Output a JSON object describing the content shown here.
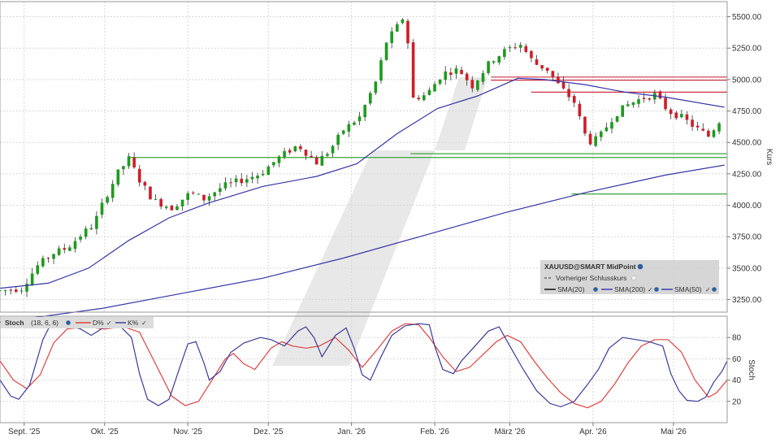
{
  "chart_data": [
    {
      "type": "candlestick",
      "instrument": "XAUUSD@SMART MidPoint",
      "ylabel": "Kurs",
      "ylim": [
        3150,
        5620
      ],
      "yticks": [
        "3250.00",
        "3500.00",
        "3750.00",
        "4000.00",
        "4250.00",
        "4500.00",
        "4750.00",
        "5000.00",
        "5250.00",
        "5500.00"
      ],
      "ytick_values": [
        3250,
        3500,
        3750,
        4000,
        4250,
        4500,
        4750,
        5000,
        5250,
        5500
      ],
      "xticks": [
        "Sept. '25",
        "Okt. '25",
        "Nov. '25",
        "Dez. '25",
        "Jan. '26",
        "Feb. '26",
        "März '26",
        "Apr. '26",
        "Mai '26"
      ],
      "xtick_days": [
        1,
        31,
        62,
        92,
        123,
        154,
        182,
        213,
        243
      ],
      "day_range": [
        -8,
        263
      ],
      "candle_step_days": 2,
      "anchors": [
        [
          -8,
          3320
        ],
        [
          0,
          3340
        ],
        [
          6,
          3520
        ],
        [
          12,
          3620
        ],
        [
          17,
          3660
        ],
        [
          22,
          3760
        ],
        [
          27,
          3850
        ],
        [
          31,
          4050
        ],
        [
          36,
          4260
        ],
        [
          40,
          4370
        ],
        [
          44,
          4200
        ],
        [
          49,
          4040
        ],
        [
          56,
          3980
        ],
        [
          63,
          4100
        ],
        [
          68,
          4050
        ],
        [
          75,
          4150
        ],
        [
          82,
          4200
        ],
        [
          89,
          4250
        ],
        [
          96,
          4380
        ],
        [
          103,
          4480
        ],
        [
          110,
          4340
        ],
        [
          115,
          4440
        ],
        [
          120,
          4600
        ],
        [
          126,
          4700
        ],
        [
          132,
          4980
        ],
        [
          136,
          5300
        ],
        [
          140,
          5420
        ],
        [
          143,
          5520
        ],
        [
          146,
          4850
        ],
        [
          151,
          4880
        ],
        [
          157,
          5050
        ],
        [
          163,
          5080
        ],
        [
          168,
          4950
        ],
        [
          175,
          5150
        ],
        [
          181,
          5240
        ],
        [
          186,
          5280
        ],
        [
          191,
          5130
        ],
        [
          196,
          5080
        ],
        [
          200,
          4960
        ],
        [
          206,
          4820
        ],
        [
          211,
          4500
        ],
        [
          215,
          4530
        ],
        [
          221,
          4720
        ],
        [
          226,
          4800
        ],
        [
          231,
          4850
        ],
        [
          236,
          4880
        ],
        [
          241,
          4750
        ],
        [
          246,
          4700
        ],
        [
          251,
          4620
        ],
        [
          256,
          4550
        ],
        [
          261,
          4700
        ]
      ],
      "series": [
        {
          "name": "Vorheriger Schlusskurs",
          "values": [],
          "style": "dashed"
        },
        {
          "name": "SMA(20)",
          "values": [],
          "color": "#000000"
        },
        {
          "name": "SMA(200)",
          "values": [
            [
              -8,
              3070
            ],
            [
              30,
              3180
            ],
            [
              60,
              3300
            ],
            [
              90,
              3420
            ],
            [
              120,
              3580
            ],
            [
              150,
              3760
            ],
            [
              180,
              3940
            ],
            [
              210,
              4100
            ],
            [
              240,
              4240
            ],
            [
              262,
              4320
            ]
          ],
          "color": "#3535a8"
        },
        {
          "name": "SMA(50)",
          "values": [
            [
              -8,
              3340
            ],
            [
              10,
              3380
            ],
            [
              25,
              3500
            ],
            [
              40,
              3720
            ],
            [
              55,
              3900
            ],
            [
              70,
              4020
            ],
            [
              90,
              4150
            ],
            [
              110,
              4230
            ],
            [
              125,
              4330
            ],
            [
              140,
              4570
            ],
            [
              155,
              4770
            ],
            [
              170,
              4870
            ],
            [
              185,
              5010
            ],
            [
              195,
              5000
            ],
            [
              210,
              4960
            ],
            [
              225,
              4900
            ],
            [
              240,
              4860
            ],
            [
              262,
              4780
            ]
          ],
          "color": "#3535a8"
        }
      ],
      "hlines": [
        {
          "y": 5020,
          "from": 175,
          "to": 263,
          "color": "#cc3344"
        },
        {
          "y": 4995,
          "from": 175,
          "to": 263,
          "color": "#cc3344"
        },
        {
          "y": 4900,
          "from": 190,
          "to": 263,
          "color": "#cc3344"
        },
        {
          "y": 4410,
          "from": 145,
          "to": 263,
          "color": "#3aa33a"
        },
        {
          "y": 4380,
          "from": 40,
          "to": 263,
          "color": "#3aa33a"
        },
        {
          "y": 4090,
          "from": 205,
          "to": 263,
          "color": "#3aa33a"
        }
      ],
      "colors": {
        "up": "#1f9a1f",
        "down": "#cc1f2a",
        "grid": "#d7d7d7"
      },
      "legend": {
        "placement": "bottom-right",
        "title": "XAUUSD@SMART MidPoint",
        "items": [
          "Vorheriger Schlusskurs",
          "SMA(20)",
          "SMA(200)",
          "SMA(50)"
        ]
      },
      "grid": true
    },
    {
      "type": "line",
      "title": "Stoch",
      "params": "(18, 6, 6)",
      "ylabel": "Stoch",
      "ylim": [
        0,
        100
      ],
      "yticks": [
        "20",
        "40",
        "60",
        "80"
      ],
      "ytick_values": [
        20,
        40,
        60,
        80
      ],
      "series": [
        {
          "name": "D%",
          "color": "#e04040",
          "values": [
            [
              -8,
              58
            ],
            [
              -3,
              40
            ],
            [
              2,
              32
            ],
            [
              7,
              45
            ],
            [
              12,
              75
            ],
            [
              17,
              88
            ],
            [
              24,
              90
            ],
            [
              31,
              88
            ],
            [
              38,
              90
            ],
            [
              44,
              85
            ],
            [
              50,
              55
            ],
            [
              56,
              25
            ],
            [
              61,
              16
            ],
            [
              66,
              20
            ],
            [
              71,
              40
            ],
            [
              76,
              60
            ],
            [
              79,
              65
            ],
            [
              83,
              55
            ],
            [
              87,
              50
            ],
            [
              93,
              70
            ],
            [
              97,
              76
            ],
            [
              101,
              72
            ],
            [
              106,
              70
            ],
            [
              111,
              72
            ],
            [
              117,
              80
            ],
            [
              122,
              68
            ],
            [
              127,
              52
            ],
            [
              133,
              70
            ],
            [
              138,
              86
            ],
            [
              143,
              93
            ],
            [
              148,
              92
            ],
            [
              152,
              80
            ],
            [
              157,
              62
            ],
            [
              162,
              48
            ],
            [
              167,
              52
            ],
            [
              172,
              64
            ],
            [
              177,
              76
            ],
            [
              181,
              82
            ],
            [
              186,
              76
            ],
            [
              191,
              58
            ],
            [
              196,
              42
            ],
            [
              201,
              28
            ],
            [
              206,
              18
            ],
            [
              211,
              14
            ],
            [
              216,
              20
            ],
            [
              221,
              36
            ],
            [
              226,
              56
            ],
            [
              231,
              72
            ],
            [
              236,
              78
            ],
            [
              241,
              78
            ],
            [
              246,
              66
            ],
            [
              251,
              40
            ],
            [
              256,
              24
            ],
            [
              259,
              28
            ],
            [
              263,
              40
            ]
          ]
        },
        {
          "name": "K%",
          "color": "#3a3a9a",
          "values": [
            [
              -8,
              40
            ],
            [
              -4,
              25
            ],
            [
              -1,
              22
            ],
            [
              3,
              35
            ],
            [
              8,
              78
            ],
            [
              11,
              93
            ],
            [
              16,
              92
            ],
            [
              22,
              88
            ],
            [
              26,
              82
            ],
            [
              31,
              90
            ],
            [
              37,
              90
            ],
            [
              41,
              80
            ],
            [
              44,
              46
            ],
            [
              47,
              22
            ],
            [
              51,
              16
            ],
            [
              55,
              22
            ],
            [
              59,
              52
            ],
            [
              62,
              74
            ],
            [
              65,
              76
            ],
            [
              68,
              56
            ],
            [
              70,
              40
            ],
            [
              74,
              48
            ],
            [
              78,
              66
            ],
            [
              83,
              75
            ],
            [
              89,
              80
            ],
            [
              93,
              78
            ],
            [
              98,
              72
            ],
            [
              103,
              86
            ],
            [
              106,
              90
            ],
            [
              109,
              80
            ],
            [
              112,
              62
            ],
            [
              117,
              82
            ],
            [
              121,
              89
            ],
            [
              124,
              70
            ],
            [
              127,
              45
            ],
            [
              130,
              40
            ],
            [
              134,
              62
            ],
            [
              138,
              82
            ],
            [
              143,
              91
            ],
            [
              148,
              93
            ],
            [
              152,
              92
            ],
            [
              154,
              72
            ],
            [
              157,
              50
            ],
            [
              161,
              46
            ],
            [
              164,
              58
            ],
            [
              169,
              72
            ],
            [
              174,
              86
            ],
            [
              178,
              90
            ],
            [
              182,
              72
            ],
            [
              187,
              50
            ],
            [
              192,
              30
            ],
            [
              197,
              18
            ],
            [
              201,
              15
            ],
            [
              206,
              20
            ],
            [
              211,
              36
            ],
            [
              215,
              50
            ],
            [
              219,
              70
            ],
            [
              224,
              80
            ],
            [
              229,
              78
            ],
            [
              234,
              76
            ],
            [
              239,
              72
            ],
            [
              242,
              46
            ],
            [
              245,
              30
            ],
            [
              248,
              21
            ],
            [
              252,
              20
            ],
            [
              255,
              24
            ],
            [
              258,
              38
            ],
            [
              261,
              48
            ],
            [
              263,
              58
            ]
          ]
        }
      ],
      "grid": true
    }
  ]
}
